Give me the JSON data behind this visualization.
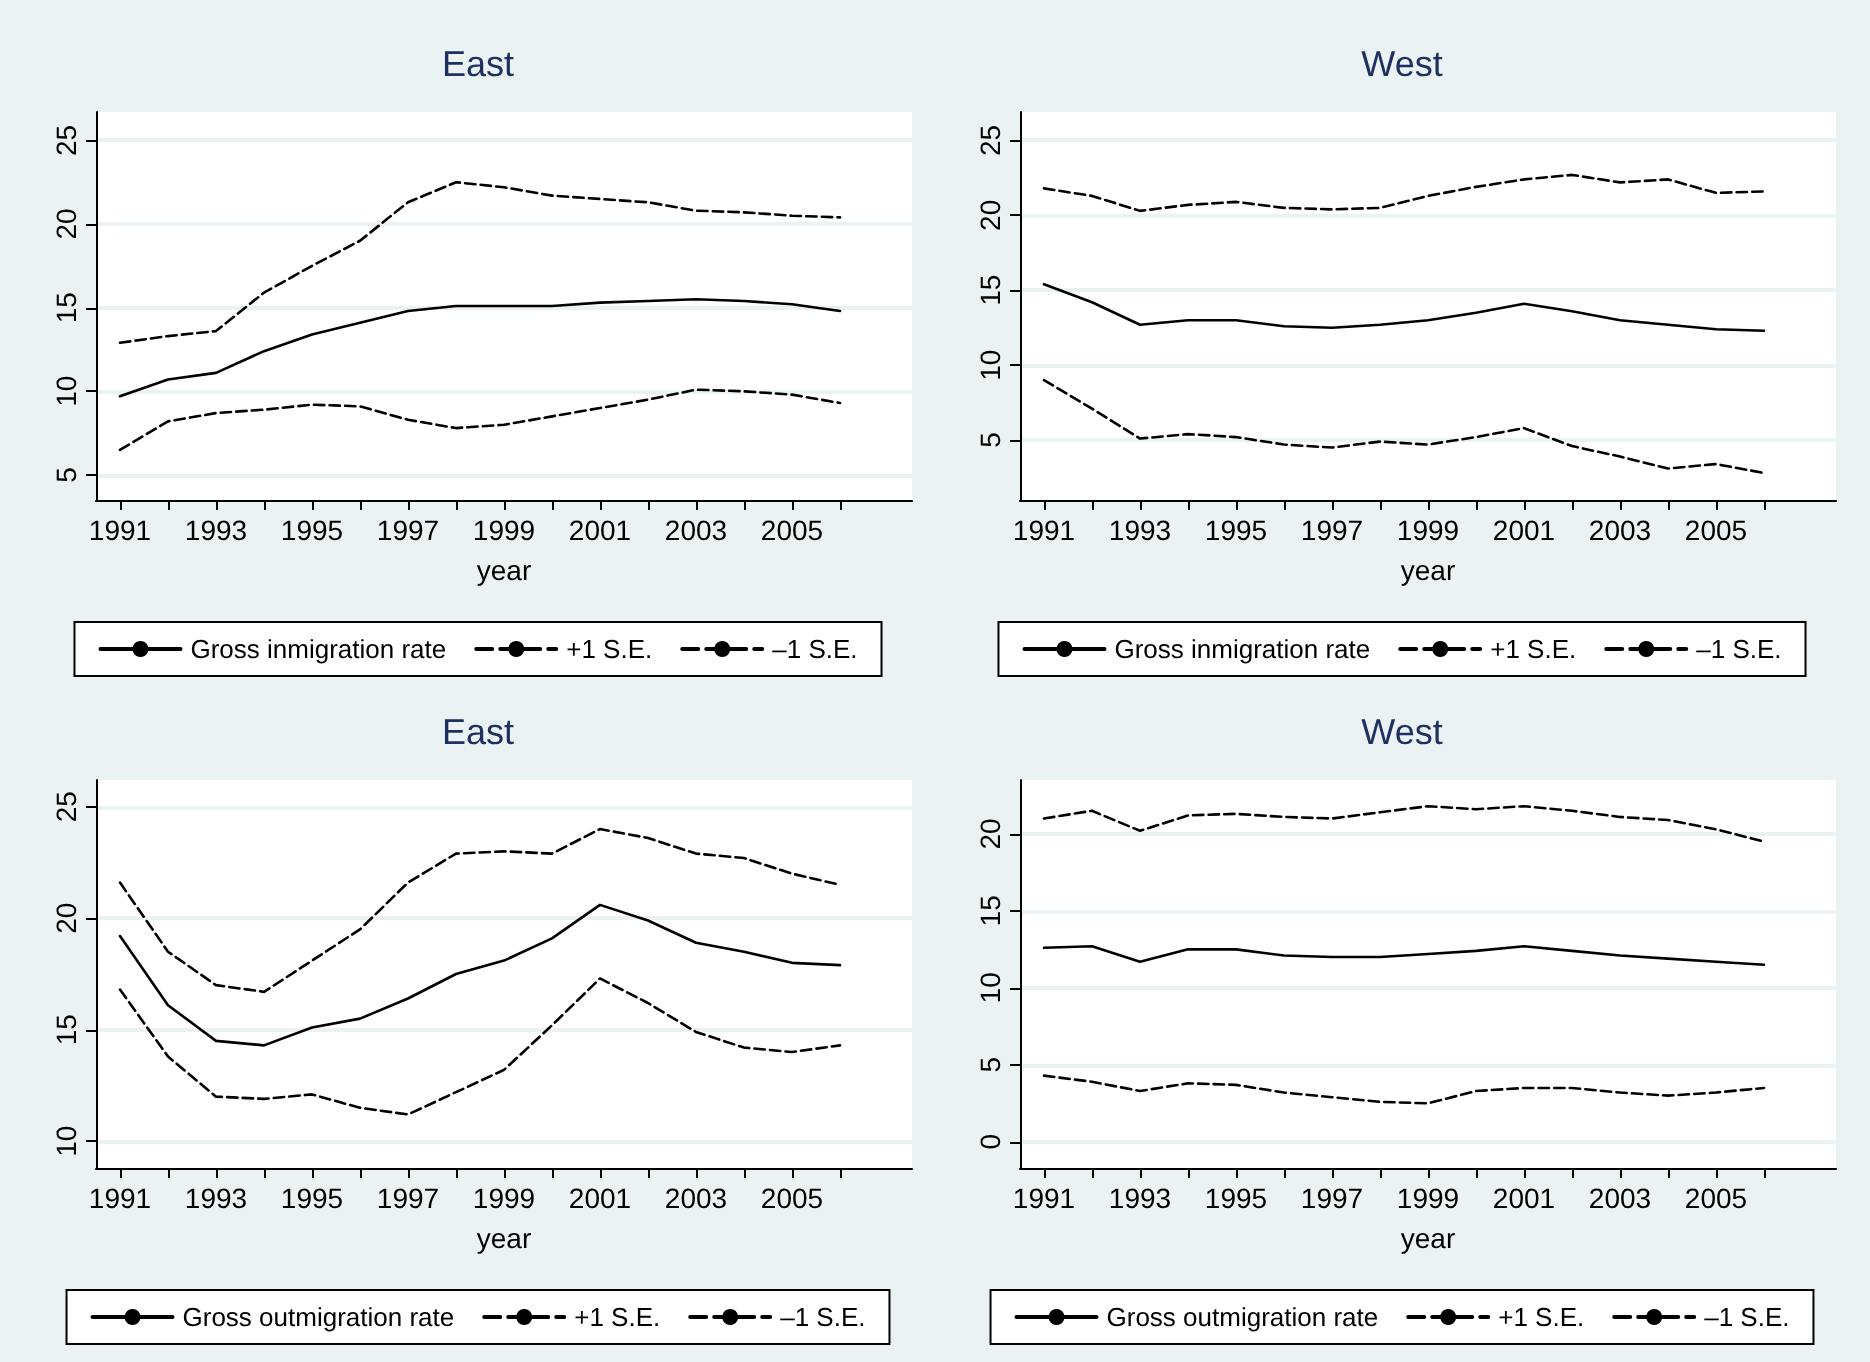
{
  "chart_data": [
    {
      "type": "line",
      "title": "East",
      "xlabel": "year",
      "grid": "y",
      "legend": "bottom",
      "marker": "none",
      "x": [
        1991,
        1992,
        1993,
        1994,
        1995,
        1996,
        1997,
        1998,
        1999,
        2000,
        2001,
        2002,
        2003,
        2004,
        2005,
        2006
      ],
      "xlim": [
        1990.5,
        2007.5
      ],
      "xticks": [
        1991,
        {
          "value": 1992,
          "label": null
        },
        1993,
        {
          "value": 1994,
          "label": null
        },
        1995,
        {
          "value": 1996,
          "label": null
        },
        1997,
        {
          "value": 1998,
          "label": null
        },
        1999,
        {
          "value": 2000,
          "label": null
        },
        2001,
        {
          "value": 2002,
          "label": null
        },
        2003,
        {
          "value": 2004,
          "label": null
        },
        2005,
        {
          "value": 2006,
          "label": null
        }
      ],
      "ylim": [
        3.5,
        26.7
      ],
      "yticks": [
        5,
        10,
        15,
        20,
        25
      ],
      "series": [
        {
          "name": "Gross inmigration rate",
          "color": "#000000",
          "line_style": "solid",
          "values": [
            9.7,
            10.7,
            11.1,
            12.4,
            13.4,
            14.1,
            14.8,
            15.1,
            15.1,
            15.1,
            15.3,
            15.4,
            15.5,
            15.4,
            15.2,
            14.8
          ]
        },
        {
          "name": "+1 S.E.",
          "color": "#000000",
          "line_style": "dashed",
          "values": [
            12.9,
            13.3,
            13.6,
            15.9,
            17.5,
            19.0,
            21.3,
            22.5,
            22.2,
            21.7,
            21.5,
            21.3,
            20.8,
            20.7,
            20.5,
            20.4
          ]
        },
        {
          "name": "–1 S.E.",
          "color": "#000000",
          "line_style": "dashed",
          "values": [
            6.5,
            8.2,
            8.7,
            8.9,
            9.2,
            9.1,
            8.3,
            7.8,
            8.0,
            8.5,
            9.0,
            9.5,
            10.1,
            10.0,
            9.8,
            9.3
          ]
        }
      ]
    },
    {
      "type": "line",
      "title": "West",
      "xlabel": "year",
      "grid": "y",
      "legend": "bottom",
      "marker": "none",
      "x": [
        1991,
        1992,
        1993,
        1994,
        1995,
        1996,
        1997,
        1998,
        1999,
        2000,
        2001,
        2002,
        2003,
        2004,
        2005,
        2006
      ],
      "xlim": [
        1990.5,
        2007.5
      ],
      "xticks": [
        1991,
        {
          "value": 1992,
          "label": null
        },
        1993,
        {
          "value": 1994,
          "label": null
        },
        1995,
        {
          "value": 1996,
          "label": null
        },
        1997,
        {
          "value": 1998,
          "label": null
        },
        1999,
        {
          "value": 2000,
          "label": null
        },
        2001,
        {
          "value": 2002,
          "label": null
        },
        2003,
        {
          "value": 2004,
          "label": null
        },
        2005,
        {
          "value": 2006,
          "label": null
        }
      ],
      "ylim": [
        1,
        26.9
      ],
      "yticks": [
        5,
        10,
        15,
        20,
        25
      ],
      "series": [
        {
          "name": "Gross inmigration rate",
          "color": "#000000",
          "line_style": "solid",
          "values": [
            15.4,
            14.2,
            12.7,
            13.0,
            13.0,
            12.6,
            12.5,
            12.7,
            13.0,
            13.5,
            14.1,
            13.6,
            13.0,
            12.7,
            12.4,
            12.3
          ]
        },
        {
          "name": "+1 S.E.",
          "color": "#000000",
          "line_style": "dashed",
          "values": [
            21.8,
            21.3,
            20.3,
            20.7,
            20.9,
            20.5,
            20.4,
            20.5,
            21.3,
            21.9,
            22.4,
            22.7,
            22.2,
            22.4,
            21.5,
            21.6
          ]
        },
        {
          "name": "–1 S.E.",
          "color": "#000000",
          "line_style": "dashed",
          "values": [
            9.0,
            7.1,
            5.1,
            5.4,
            5.2,
            4.7,
            4.5,
            4.9,
            4.7,
            5.2,
            5.8,
            4.6,
            3.9,
            3.1,
            3.4,
            2.8
          ]
        }
      ]
    },
    {
      "type": "line",
      "title": "East",
      "xlabel": "year",
      "grid": "y",
      "legend": "bottom",
      "marker": "none",
      "x": [
        1991,
        1992,
        1993,
        1994,
        1995,
        1996,
        1997,
        1998,
        1999,
        2000,
        2001,
        2002,
        2003,
        2004,
        2005,
        2006
      ],
      "xlim": [
        1990.5,
        2007.5
      ],
      "xticks": [
        1991,
        {
          "value": 1992,
          "label": null
        },
        1993,
        {
          "value": 1994,
          "label": null
        },
        1995,
        {
          "value": 1996,
          "label": null
        },
        1997,
        {
          "value": 1998,
          "label": null
        },
        1999,
        {
          "value": 2000,
          "label": null
        },
        2001,
        {
          "value": 2002,
          "label": null
        },
        2003,
        {
          "value": 2004,
          "label": null
        },
        2005,
        {
          "value": 2006,
          "label": null
        }
      ],
      "ylim": [
        8.8,
        26.2
      ],
      "yticks": [
        10,
        15,
        20,
        25
      ],
      "series": [
        {
          "name": "Gross outmigration rate",
          "color": "#000000",
          "line_style": "solid",
          "values": [
            19.2,
            16.1,
            14.5,
            14.3,
            15.1,
            15.5,
            16.4,
            17.5,
            18.1,
            19.1,
            20.6,
            19.9,
            18.9,
            18.5,
            18.0,
            17.9
          ]
        },
        {
          "name": "+1 S.E.",
          "color": "#000000",
          "line_style": "dashed",
          "values": [
            21.6,
            18.5,
            17.0,
            16.7,
            18.1,
            19.5,
            21.6,
            22.9,
            23.0,
            22.9,
            24.0,
            23.6,
            22.9,
            22.7,
            22.0,
            21.5
          ]
        },
        {
          "name": "–1 S.E.",
          "color": "#000000",
          "line_style": "dashed",
          "values": [
            16.8,
            13.8,
            12.0,
            11.9,
            12.1,
            11.5,
            11.2,
            12.2,
            13.2,
            15.2,
            17.3,
            16.2,
            14.9,
            14.2,
            14.0,
            14.3
          ]
        }
      ]
    },
    {
      "type": "line",
      "title": "West",
      "xlabel": "year",
      "grid": "y",
      "legend": "bottom",
      "marker": "none",
      "x": [
        1991,
        1992,
        1993,
        1994,
        1995,
        1996,
        1997,
        1998,
        1999,
        2000,
        2001,
        2002,
        2003,
        2004,
        2005,
        2006
      ],
      "xlim": [
        1990.5,
        2007.5
      ],
      "xticks": [
        1991,
        {
          "value": 1992,
          "label": null
        },
        1993,
        {
          "value": 1994,
          "label": null
        },
        1995,
        {
          "value": 1996,
          "label": null
        },
        1997,
        {
          "value": 1998,
          "label": null
        },
        1999,
        {
          "value": 2000,
          "label": null
        },
        2001,
        {
          "value": 2002,
          "label": null
        },
        2003,
        {
          "value": 2004,
          "label": null
        },
        2005,
        {
          "value": 2006,
          "label": null
        }
      ],
      "ylim": [
        -1.7,
        23.5
      ],
      "yticks": [
        0,
        5,
        10,
        15,
        20
      ],
      "series": [
        {
          "name": "Gross outmigration rate",
          "color": "#000000",
          "line_style": "solid",
          "values": [
            12.6,
            12.7,
            11.7,
            12.5,
            12.5,
            12.1,
            12.0,
            12.0,
            12.2,
            12.4,
            12.7,
            12.4,
            12.1,
            11.9,
            11.7,
            11.5
          ]
        },
        {
          "name": "+1 S.E.",
          "color": "#000000",
          "line_style": "dashed",
          "values": [
            21.0,
            21.5,
            20.2,
            21.2,
            21.3,
            21.1,
            21.0,
            21.4,
            21.8,
            21.6,
            21.8,
            21.5,
            21.1,
            20.9,
            20.3,
            19.5
          ]
        },
        {
          "name": "–1 S.E.",
          "color": "#000000",
          "line_style": "dashed",
          "values": [
            4.3,
            3.9,
            3.3,
            3.8,
            3.7,
            3.2,
            2.9,
            2.6,
            2.5,
            3.3,
            3.5,
            3.5,
            3.2,
            3.0,
            3.2,
            3.5
          ]
        }
      ]
    }
  ]
}
